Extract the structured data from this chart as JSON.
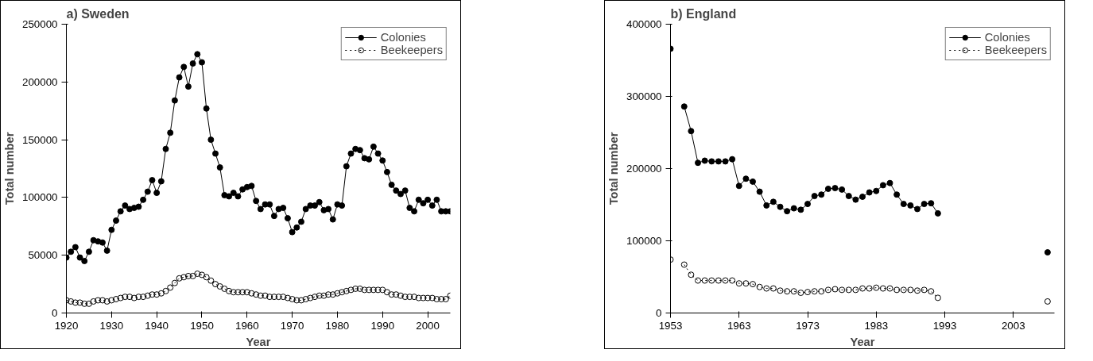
{
  "chart_data": [
    {
      "type": "line",
      "title": "a) Sweden",
      "xlabel": "Year",
      "ylabel": "Total number",
      "xlim": [
        1920,
        2005
      ],
      "ylim": [
        0,
        250000
      ],
      "xticks": [
        1920,
        1930,
        1940,
        1950,
        1960,
        1970,
        1980,
        1990,
        2000
      ],
      "yticks": [
        0,
        50000,
        100000,
        150000,
        200000,
        250000
      ],
      "grid": false,
      "legend": "top right",
      "marker": "circle",
      "x": [
        1920,
        1921,
        1922,
        1923,
        1924,
        1925,
        1926,
        1927,
        1928,
        1929,
        1930,
        1931,
        1932,
        1933,
        1934,
        1935,
        1936,
        1937,
        1938,
        1939,
        1940,
        1941,
        1942,
        1943,
        1944,
        1945,
        1946,
        1947,
        1948,
        1949,
        1950,
        1951,
        1952,
        1953,
        1954,
        1955,
        1956,
        1957,
        1958,
        1959,
        1960,
        1961,
        1962,
        1963,
        1964,
        1965,
        1966,
        1967,
        1968,
        1969,
        1970,
        1971,
        1972,
        1973,
        1974,
        1975,
        1976,
        1977,
        1978,
        1979,
        1980,
        1981,
        1982,
        1983,
        1984,
        1985,
        1986,
        1987,
        1988,
        1989,
        1990,
        1991,
        1992,
        1993,
        1994,
        1995,
        1996,
        1997,
        1998,
        1999,
        2000,
        2001,
        2002,
        2003,
        2004,
        2005
      ],
      "series": [
        {
          "name": "Colonies",
          "color": "#000000",
          "line_style": "solid",
          "values": [
            48000,
            53000,
            57000,
            48000,
            45000,
            53000,
            63000,
            62000,
            61000,
            54000,
            72000,
            80000,
            88000,
            93000,
            90000,
            91000,
            92000,
            98000,
            105000,
            115000,
            104000,
            114000,
            142000,
            156000,
            184000,
            204000,
            213000,
            196000,
            216000,
            224000,
            217000,
            177000,
            150000,
            138000,
            126000,
            102000,
            101000,
            104000,
            101000,
            107000,
            109000,
            110000,
            97000,
            90000,
            94000,
            94000,
            84000,
            90000,
            91000,
            82000,
            70000,
            74000,
            79000,
            90000,
            93000,
            93000,
            96000,
            89000,
            90000,
            81000,
            94000,
            93000,
            127000,
            138000,
            142000,
            141000,
            134000,
            133000,
            144000,
            138000,
            132000,
            122000,
            111000,
            106000,
            103000,
            106000,
            91000,
            88000,
            98000,
            95000,
            98000,
            93000,
            98000,
            88000,
            88000,
            88000
          ]
        },
        {
          "name": "Beekeepers",
          "color": "#000000",
          "line_style": "dotted",
          "values": [
            11000,
            10000,
            9000,
            9000,
            8000,
            8000,
            10000,
            11000,
            11000,
            10000,
            11000,
            12000,
            13000,
            14000,
            14000,
            13000,
            14000,
            14000,
            15000,
            16000,
            16000,
            17000,
            19000,
            22000,
            26000,
            30000,
            31000,
            32000,
            32000,
            34000,
            33000,
            31000,
            28000,
            25000,
            23000,
            21000,
            19000,
            18000,
            18000,
            18000,
            18000,
            17000,
            16000,
            15000,
            15000,
            14000,
            14000,
            14000,
            14000,
            13000,
            12000,
            11000,
            11000,
            12000,
            13000,
            14000,
            15000,
            15000,
            16000,
            16000,
            17000,
            18000,
            19000,
            20000,
            21000,
            21000,
            20000,
            20000,
            20000,
            20000,
            20000,
            18000,
            16000,
            16000,
            15000,
            14000,
            14000,
            14000,
            13000,
            13000,
            13000,
            13000,
            12000,
            12000,
            12000,
            15000
          ]
        }
      ]
    },
    {
      "type": "line",
      "title": "b) England",
      "xlabel": "Year",
      "ylabel": "Total number",
      "xlim": [
        1953,
        2009
      ],
      "ylim": [
        0,
        400000
      ],
      "xticks": [
        1953,
        1963,
        1973,
        1983,
        1993,
        2003
      ],
      "yticks": [
        0,
        100000,
        200000,
        300000,
        400000
      ],
      "grid": false,
      "legend": "top right",
      "marker": "circle",
      "x": [
        1953,
        1954,
        1955,
        1956,
        1957,
        1958,
        1959,
        1960,
        1961,
        1962,
        1963,
        1964,
        1965,
        1966,
        1967,
        1968,
        1969,
        1970,
        1971,
        1972,
        1973,
        1974,
        1975,
        1976,
        1977,
        1978,
        1979,
        1980,
        1981,
        1982,
        1983,
        1984,
        1985,
        1986,
        1987,
        1988,
        1989,
        1990,
        1991,
        1992,
        1993,
        2008
      ],
      "series": [
        {
          "name": "Colonies",
          "color": "#000000",
          "line_style": "solid",
          "values": [
            366000,
            null,
            286000,
            252000,
            208000,
            211000,
            210000,
            210000,
            210000,
            213000,
            176000,
            186000,
            182000,
            168000,
            149000,
            154000,
            147000,
            141000,
            145000,
            143000,
            151000,
            162000,
            164000,
            172000,
            173000,
            171000,
            162000,
            157000,
            161000,
            167000,
            169000,
            177000,
            180000,
            164000,
            151000,
            149000,
            144000,
            151000,
            152000,
            138000,
            null,
            84000
          ]
        },
        {
          "name": "Beekeepers",
          "color": "#000000",
          "line_style": "dotted",
          "values": [
            74000,
            null,
            67000,
            53000,
            45000,
            45000,
            45000,
            45000,
            45000,
            45000,
            41000,
            41000,
            40000,
            36000,
            34000,
            34000,
            31000,
            30000,
            30000,
            28000,
            29000,
            30000,
            30000,
            32000,
            33000,
            32000,
            32000,
            32000,
            34000,
            34000,
            35000,
            34000,
            34000,
            32000,
            32000,
            32000,
            31000,
            32000,
            30000,
            21000,
            null,
            16000
          ]
        }
      ]
    }
  ]
}
